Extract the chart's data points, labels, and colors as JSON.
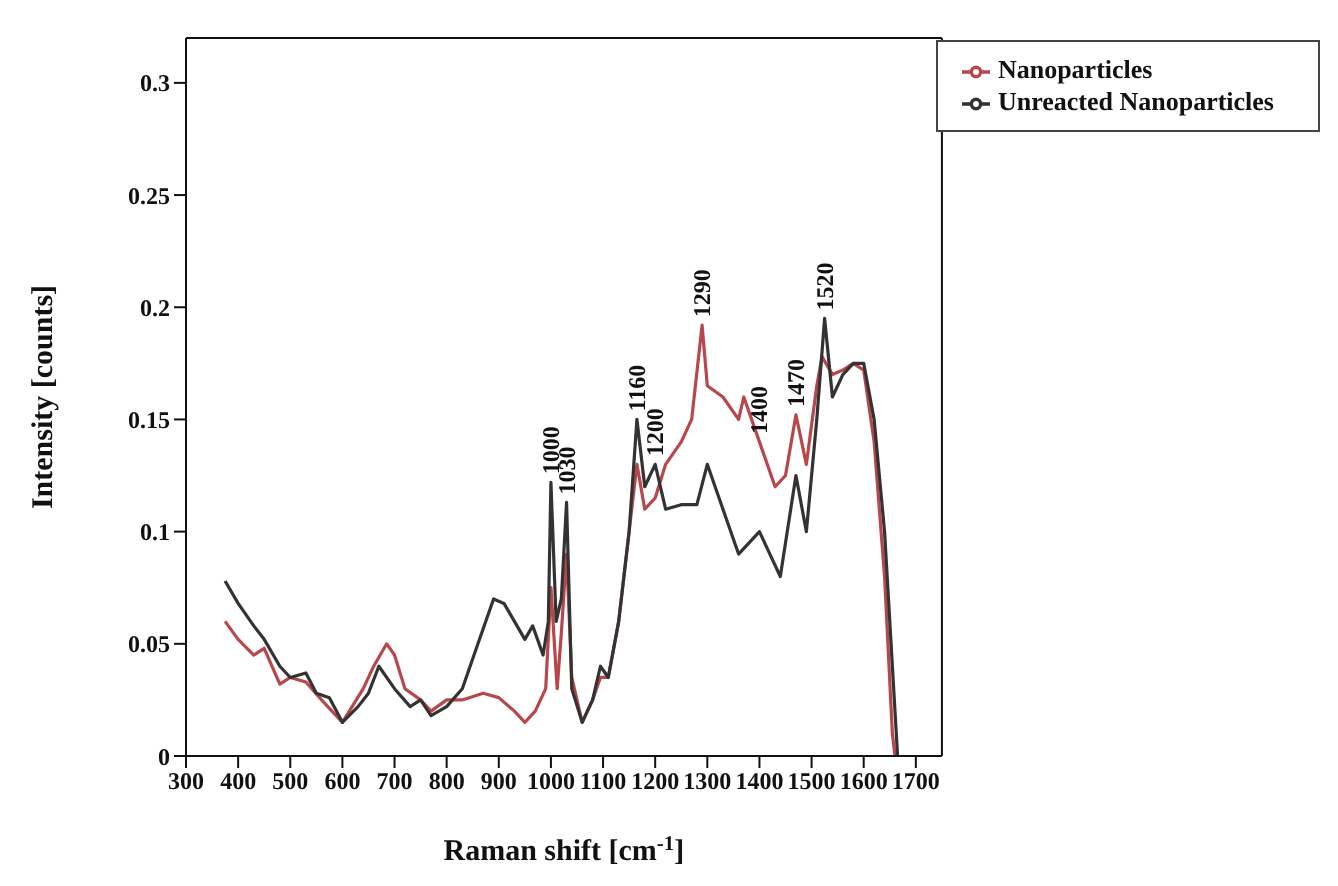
{
  "chart_data": {
    "type": "line",
    "xlabel": "Raman shift [cm$^{-1}$]",
    "ylabel": "Intensity [counts]",
    "xlim": [
      300,
      1750
    ],
    "xticks": [
      300,
      400,
      500,
      600,
      700,
      800,
      900,
      1000,
      1100,
      1200,
      1300,
      1400,
      1500,
      1600,
      1700
    ],
    "ylim": [
      0,
      0.32
    ],
    "yticks": [
      0,
      0.05,
      0.1,
      0.15,
      0.2,
      0.25,
      0.3
    ],
    "legend": "top right",
    "grid": false,
    "series": [
      {
        "name": "Nanoparticles",
        "color": "#b8474c",
        "x": [
          375,
          400,
          430,
          450,
          480,
          500,
          530,
          560,
          600,
          640,
          660,
          685,
          700,
          720,
          750,
          770,
          800,
          830,
          870,
          900,
          930,
          950,
          970,
          990,
          1000,
          1012,
          1020,
          1030,
          1040,
          1060,
          1080,
          1095,
          1110,
          1130,
          1150,
          1165,
          1180,
          1200,
          1220,
          1250,
          1270,
          1290,
          1300,
          1330,
          1360,
          1370,
          1400,
          1430,
          1450,
          1470,
          1490,
          1510,
          1520,
          1540,
          1560,
          1580,
          1600,
          1620,
          1640,
          1655,
          1660
        ],
        "values": [
          0.06,
          0.052,
          0.045,
          0.048,
          0.032,
          0.035,
          0.033,
          0.025,
          0.015,
          0.03,
          0.04,
          0.05,
          0.045,
          0.03,
          0.025,
          0.02,
          0.025,
          0.025,
          0.028,
          0.026,
          0.02,
          0.015,
          0.02,
          0.03,
          0.075,
          0.03,
          0.055,
          0.09,
          0.035,
          0.015,
          0.025,
          0.035,
          0.035,
          0.06,
          0.1,
          0.13,
          0.11,
          0.115,
          0.13,
          0.14,
          0.15,
          0.192,
          0.165,
          0.16,
          0.15,
          0.16,
          0.14,
          0.12,
          0.125,
          0.152,
          0.13,
          0.165,
          0.178,
          0.17,
          0.172,
          0.175,
          0.172,
          0.14,
          0.08,
          0.01,
          0
        ]
      },
      {
        "name": "Unreacted Nanoparticles",
        "color": "#333333",
        "x": [
          375,
          400,
          430,
          450,
          480,
          500,
          530,
          550,
          575,
          600,
          630,
          650,
          670,
          700,
          730,
          750,
          770,
          800,
          830,
          860,
          890,
          910,
          930,
          950,
          965,
          985,
          995,
          1000,
          1010,
          1020,
          1030,
          1040,
          1060,
          1080,
          1095,
          1110,
          1130,
          1150,
          1165,
          1180,
          1200,
          1220,
          1250,
          1280,
          1300,
          1330,
          1360,
          1380,
          1400,
          1420,
          1440,
          1470,
          1490,
          1510,
          1525,
          1540,
          1560,
          1580,
          1600,
          1620,
          1640,
          1660,
          1665
        ],
        "values": [
          0.078,
          0.068,
          0.058,
          0.052,
          0.04,
          0.035,
          0.037,
          0.028,
          0.026,
          0.015,
          0.022,
          0.028,
          0.04,
          0.03,
          0.022,
          0.025,
          0.018,
          0.022,
          0.03,
          0.05,
          0.07,
          0.068,
          0.06,
          0.052,
          0.058,
          0.045,
          0.06,
          0.122,
          0.06,
          0.07,
          0.113,
          0.03,
          0.015,
          0.025,
          0.04,
          0.035,
          0.06,
          0.1,
          0.15,
          0.12,
          0.13,
          0.11,
          0.112,
          0.112,
          0.13,
          0.11,
          0.09,
          0.095,
          0.1,
          0.09,
          0.08,
          0.125,
          0.1,
          0.15,
          0.195,
          0.16,
          0.17,
          0.175,
          0.175,
          0.15,
          0.1,
          0.02,
          0
        ]
      }
    ],
    "annotations": [
      {
        "text": "1000",
        "x": 1000,
        "y": 0.122
      },
      {
        "text": "1030",
        "x": 1030,
        "y": 0.113
      },
      {
        "text": "1160",
        "x": 1165,
        "y": 0.15
      },
      {
        "text": "1200",
        "x": 1200,
        "y": 0.13
      },
      {
        "text": "1290",
        "x": 1290,
        "y": 0.192
      },
      {
        "text": "1400",
        "x": 1400,
        "y": 0.14
      },
      {
        "text": "1470",
        "x": 1470,
        "y": 0.152
      },
      {
        "text": "1520",
        "x": 1525,
        "y": 0.195
      }
    ]
  }
}
